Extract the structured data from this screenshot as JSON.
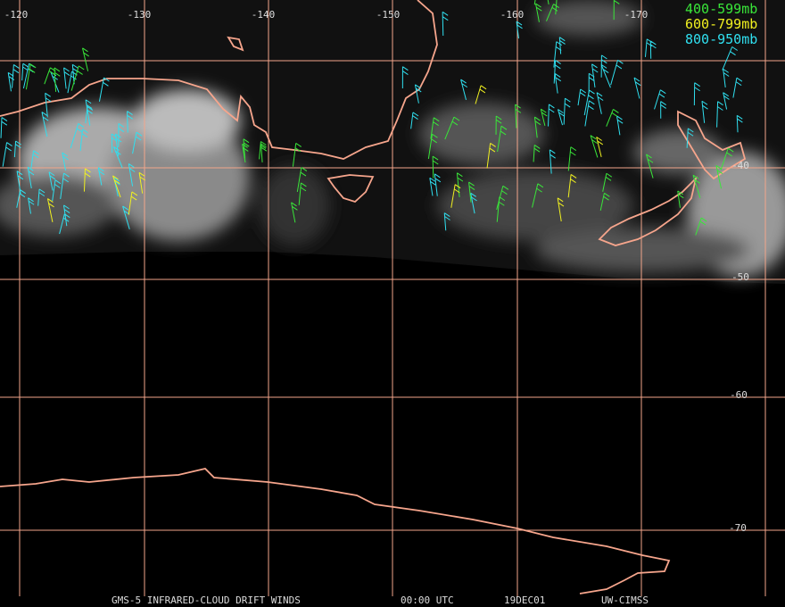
{
  "map": {
    "longitude_labels": [
      "-120",
      "-130",
      "-140",
      "-150",
      "-160",
      "-170"
    ],
    "latitude_labels": [
      "-40",
      "-50",
      "-60",
      "-70"
    ],
    "legend": [
      "400-599mb",
      "600-799mb",
      "800-950mb"
    ],
    "footer": {
      "product": "GMS-5 INFRARED-CLOUD DRIFT WINDS",
      "time": "00:00 UTC",
      "date": "19DEC01",
      "source": "UW-CIMSS"
    }
  }
}
